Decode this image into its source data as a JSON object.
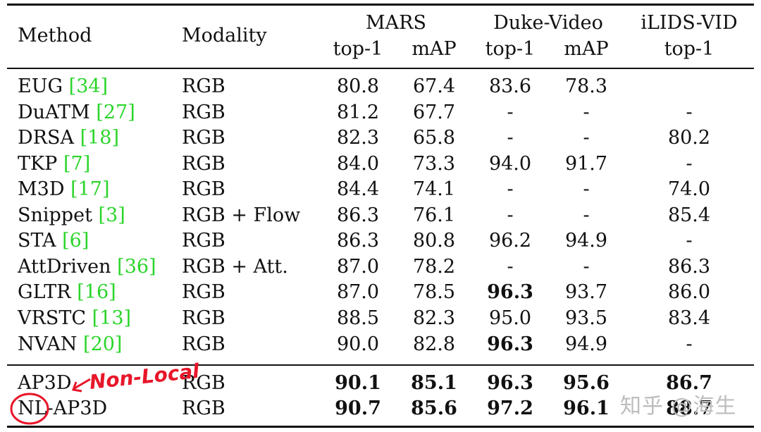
{
  "headers": {
    "method": "Method",
    "modality": "Modality",
    "groups": [
      {
        "name": "MARS",
        "subs": [
          "top-1",
          "mAP"
        ]
      },
      {
        "name": "Duke-Video",
        "subs": [
          "top-1",
          "mAP"
        ]
      },
      {
        "name": "iLIDS-VID",
        "subs": [
          "top-1"
        ]
      }
    ]
  },
  "rows": [
    {
      "method": "EUG",
      "ref": "34",
      "modality": "RGB",
      "values": [
        "80.8",
        "67.4",
        "83.6",
        "78.3",
        ""
      ],
      "bold": [
        false,
        false,
        false,
        false,
        false
      ]
    },
    {
      "method": "DuATM",
      "ref": "27",
      "modality": "RGB",
      "values": [
        "81.2",
        "67.7",
        "-",
        "-",
        "-"
      ],
      "bold": [
        false,
        false,
        false,
        false,
        false
      ]
    },
    {
      "method": "DRSA",
      "ref": "18",
      "modality": "RGB",
      "values": [
        "82.3",
        "65.8",
        "-",
        "-",
        "80.2"
      ],
      "bold": [
        false,
        false,
        false,
        false,
        false
      ]
    },
    {
      "method": "TKP",
      "ref": "7",
      "modality": "RGB",
      "values": [
        "84.0",
        "73.3",
        "94.0",
        "91.7",
        "-"
      ],
      "bold": [
        false,
        false,
        false,
        false,
        false
      ]
    },
    {
      "method": "M3D",
      "ref": "17",
      "modality": "RGB",
      "values": [
        "84.4",
        "74.1",
        "-",
        "-",
        "74.0"
      ],
      "bold": [
        false,
        false,
        false,
        false,
        false
      ]
    },
    {
      "method": "Snippet",
      "ref": "3",
      "modality": "RGB + Flow",
      "values": [
        "86.3",
        "76.1",
        "-",
        "-",
        "85.4"
      ],
      "bold": [
        false,
        false,
        false,
        false,
        false
      ]
    },
    {
      "method": "STA",
      "ref": "6",
      "modality": "RGB",
      "values": [
        "86.3",
        "80.8",
        "96.2",
        "94.9",
        "-"
      ],
      "bold": [
        false,
        false,
        false,
        false,
        false
      ]
    },
    {
      "method": "AttDriven",
      "ref": "36",
      "modality": "RGB + Att.",
      "values": [
        "87.0",
        "78.2",
        "-",
        "-",
        "86.3"
      ],
      "bold": [
        false,
        false,
        false,
        false,
        false
      ]
    },
    {
      "method": "GLTR",
      "ref": "16",
      "modality": "RGB",
      "values": [
        "87.0",
        "78.5",
        "96.3",
        "93.7",
        "86.0"
      ],
      "bold": [
        false,
        false,
        true,
        false,
        false
      ]
    },
    {
      "method": "VRSTC",
      "ref": "13",
      "modality": "RGB",
      "values": [
        "88.5",
        "82.3",
        "95.0",
        "93.5",
        "83.4"
      ],
      "bold": [
        false,
        false,
        false,
        false,
        false
      ]
    },
    {
      "method": "NVAN",
      "ref": "20",
      "modality": "RGB",
      "values": [
        "90.0",
        "82.8",
        "96.3",
        "94.9",
        "-"
      ],
      "bold": [
        false,
        false,
        true,
        false,
        false
      ]
    }
  ],
  "ours": [
    {
      "method": "AP3D",
      "modality": "RGB",
      "values": [
        "90.1",
        "85.1",
        "96.3",
        "95.6",
        "86.7"
      ],
      "bold": [
        true,
        true,
        true,
        true,
        true
      ]
    },
    {
      "method": "NL-AP3D",
      "modality": "RGB",
      "values": [
        "90.7",
        "85.6",
        "97.2",
        "96.1",
        "88.7"
      ],
      "bold": [
        true,
        true,
        true,
        true,
        true
      ]
    }
  ],
  "annotation": {
    "text": "Non-Local",
    "color": "#e8162a"
  },
  "watermark": "知乎 @海生"
}
